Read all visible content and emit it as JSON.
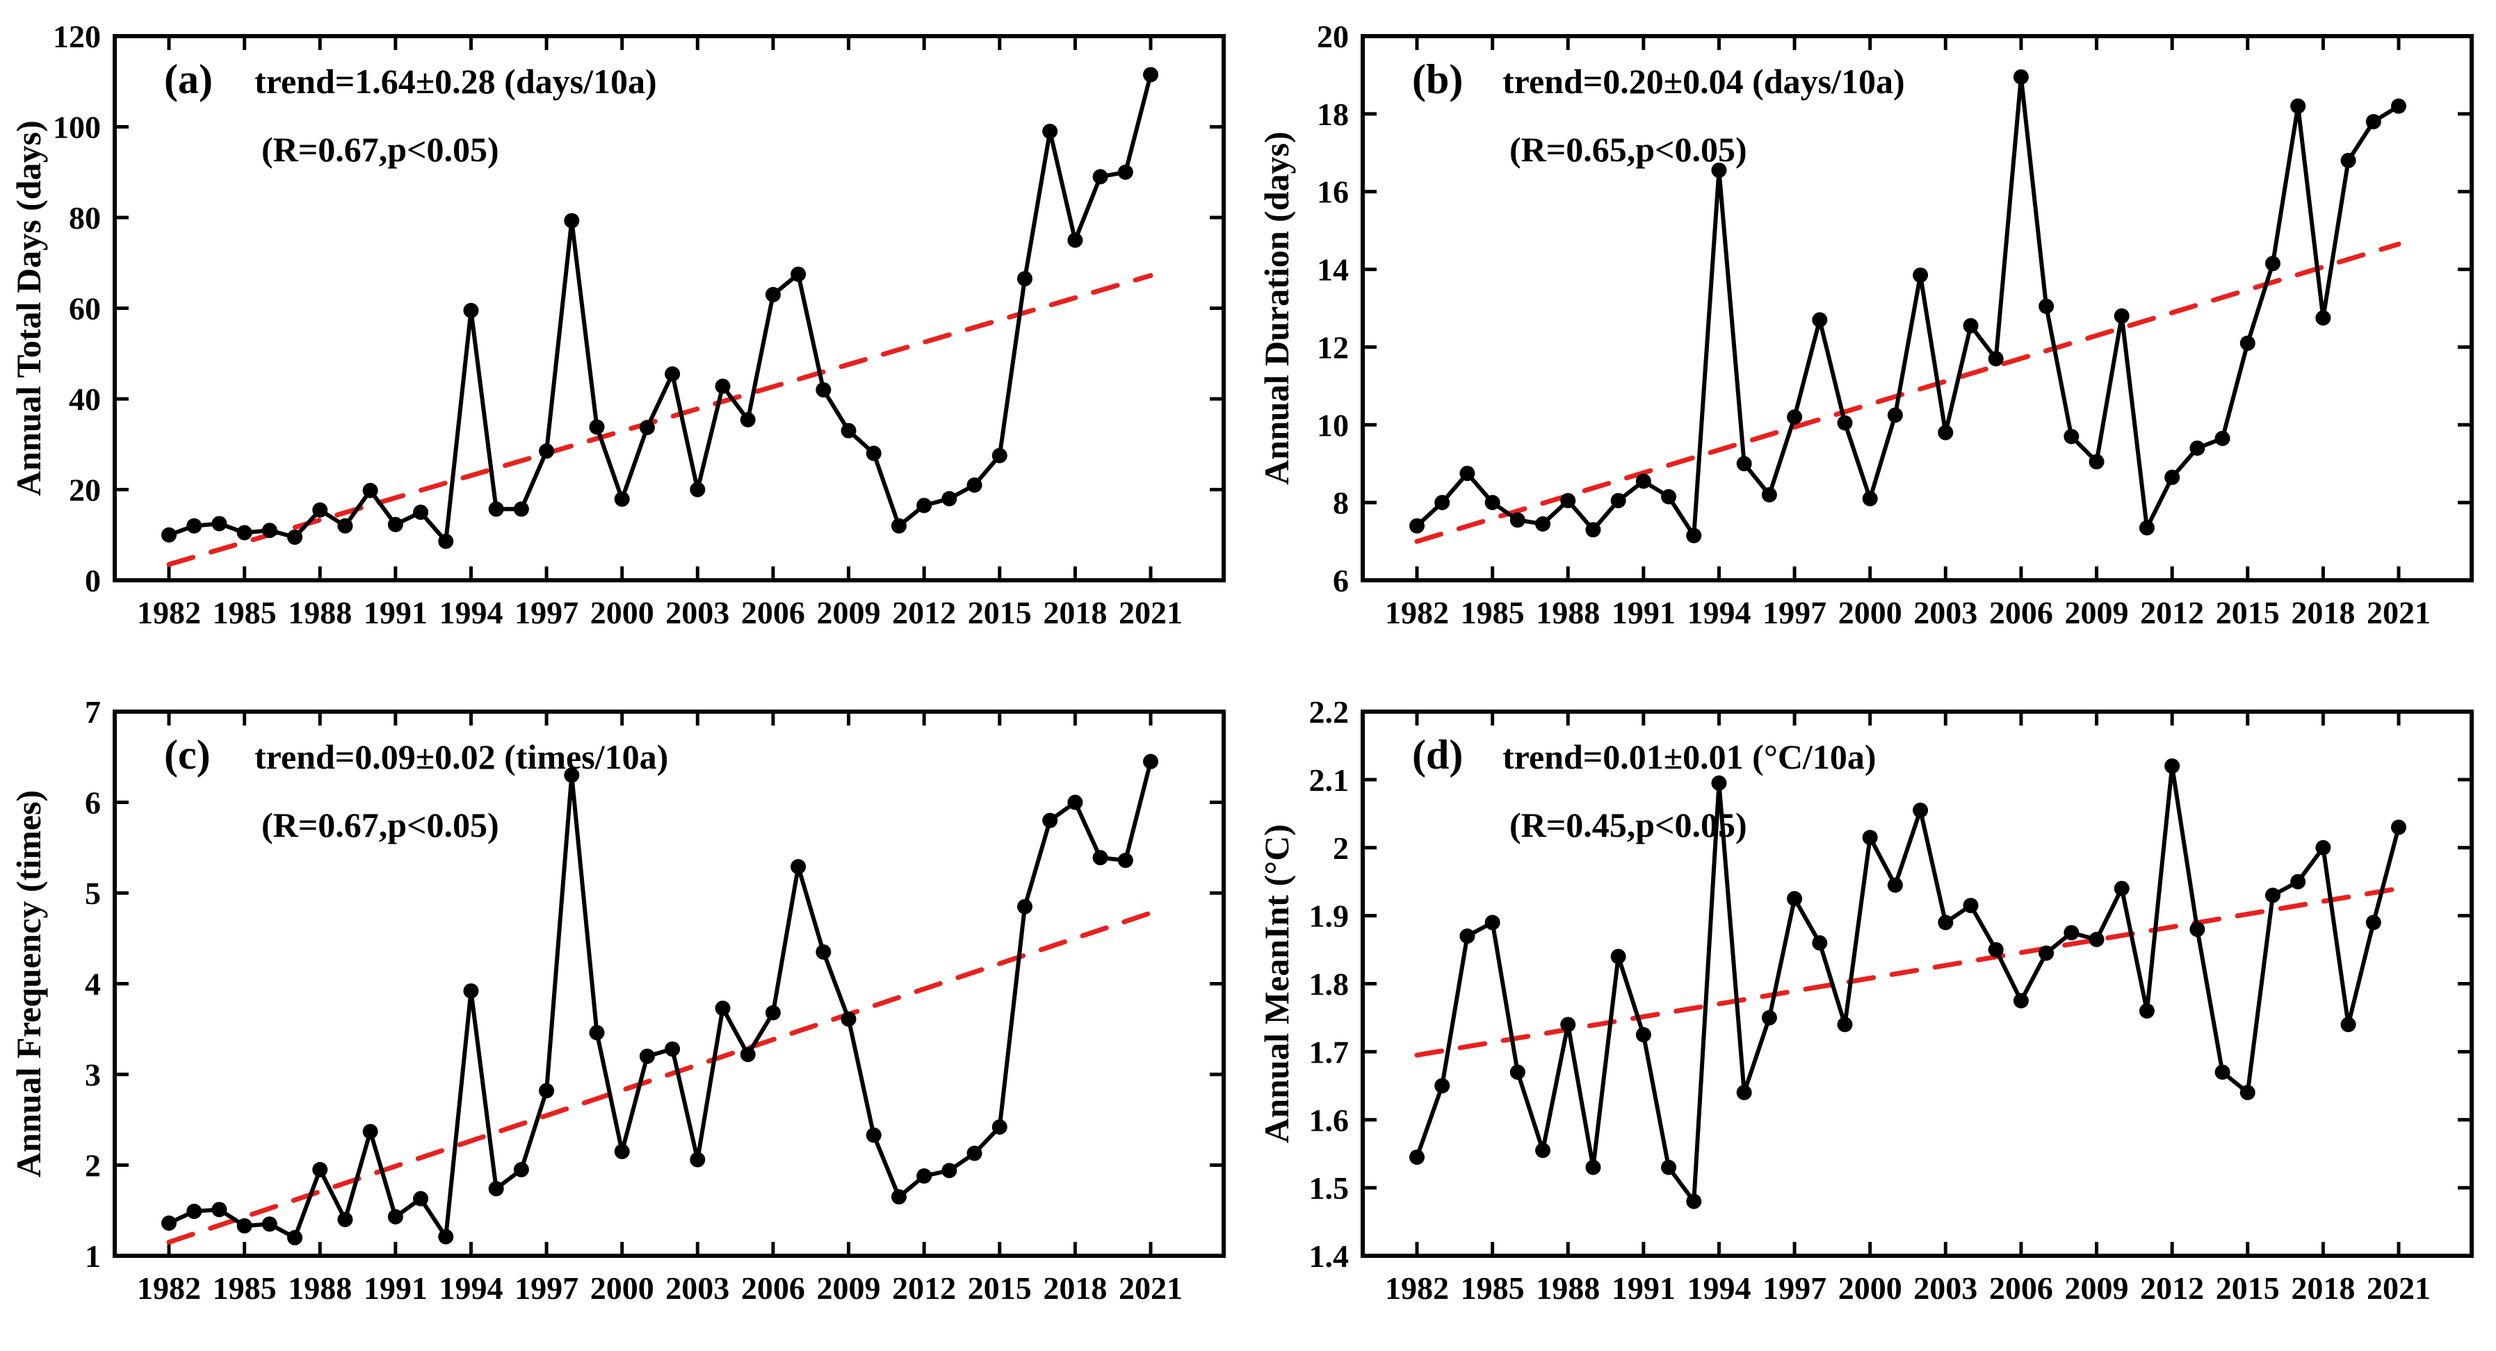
{
  "figure": {
    "background": "#ffffff",
    "axis_color": "#000000"
  },
  "years": [
    1982,
    1983,
    1984,
    1985,
    1986,
    1987,
    1988,
    1989,
    1990,
    1991,
    1992,
    1993,
    1994,
    1995,
    1996,
    1997,
    1998,
    1999,
    2000,
    2001,
    2002,
    2003,
    2004,
    2005,
    2006,
    2007,
    2008,
    2009,
    2010,
    2011,
    2012,
    2013,
    2014,
    2015,
    2016,
    2017,
    2018,
    2019,
    2020,
    2021
  ],
  "chart_data": [
    {
      "id": "a",
      "type": "line",
      "panel_label": "(a)",
      "trend_label": "trend=1.64±0.28 (days/10a)",
      "r_label": "(R=0.67,p<0.05)",
      "ylabel": "Annual Total Days (days)",
      "xlabel": "",
      "ylim": [
        0,
        120
      ],
      "yticks": [
        "0",
        "20",
        "40",
        "60",
        "80",
        "100",
        "120"
      ],
      "xticks": [
        "1982",
        "1985",
        "1988",
        "1991",
        "1994",
        "1997",
        "2000",
        "2003",
        "2006",
        "2009",
        "2012",
        "2015",
        "2018",
        "2021"
      ],
      "values": [
        10,
        12,
        12.5,
        10.5,
        11,
        9.5,
        15.5,
        12,
        19.8,
        12.3,
        15,
        8.6,
        59.5,
        15.7,
        15.7,
        28.5,
        79.3,
        33.8,
        17.9,
        33.7,
        45.5,
        20,
        42.8,
        35.4,
        63,
        67.5,
        42,
        33,
        28,
        12,
        16.5,
        18,
        21,
        27.5,
        66.5,
        99,
        75,
        89,
        90,
        111.5
      ],
      "trend": {
        "x": [
          1982,
          2021
        ],
        "y": [
          3.5,
          67.2
        ]
      },
      "grid": false,
      "legend": "none",
      "line_color": "#000000",
      "trend_color": "#e8211d"
    },
    {
      "id": "b",
      "type": "line",
      "panel_label": "(b)",
      "trend_label": "trend=0.20±0.04 (days/10a)",
      "r_label": "(R=0.65,p<0.05)",
      "ylabel": "Annual Duration (days)",
      "xlabel": "",
      "ylim": [
        6,
        20
      ],
      "yticks": [
        "6",
        "8",
        "10",
        "12",
        "14",
        "16",
        "18",
        "20"
      ],
      "xticks": [
        "1982",
        "1985",
        "1988",
        "1991",
        "1994",
        "1997",
        "2000",
        "2003",
        "2006",
        "2009",
        "2012",
        "2015",
        "2018",
        "2021"
      ],
      "values": [
        7.4,
        8.0,
        8.75,
        8.0,
        7.55,
        7.45,
        8.05,
        7.3,
        8.05,
        8.55,
        8.15,
        7.15,
        16.55,
        9.0,
        8.2,
        10.2,
        12.7,
        10.05,
        8.1,
        10.25,
        13.85,
        9.8,
        12.55,
        11.7,
        18.95,
        13.05,
        9.7,
        9.05,
        12.8,
        7.35,
        8.65,
        9.4,
        9.65,
        12.1,
        14.15,
        18.2,
        12.75,
        16.8,
        17.8,
        18.2
      ],
      "trend": {
        "x": [
          1982,
          2021
        ],
        "y": [
          7.0,
          14.65
        ]
      },
      "grid": false,
      "legend": "none",
      "line_color": "#000000",
      "trend_color": "#e8211d"
    },
    {
      "id": "c",
      "type": "line",
      "panel_label": "(c)",
      "trend_label": "trend=0.09±0.02 (times/10a)",
      "r_label": "(R=0.67,p<0.05)",
      "ylabel": "Annual Frequency (times)",
      "xlabel": "",
      "ylim": [
        1,
        7
      ],
      "yticks": [
        "1",
        "2",
        "3",
        "4",
        "5",
        "6",
        "7"
      ],
      "xticks": [
        "1982",
        "1985",
        "1988",
        "1991",
        "1994",
        "1997",
        "2000",
        "2003",
        "2006",
        "2009",
        "2012",
        "2015",
        "2018",
        "2021"
      ],
      "values": [
        1.36,
        1.49,
        1.51,
        1.33,
        1.35,
        1.2,
        1.95,
        1.4,
        2.37,
        1.43,
        1.63,
        1.21,
        3.92,
        1.74,
        1.95,
        2.82,
        6.3,
        3.46,
        2.15,
        3.2,
        3.28,
        2.06,
        3.73,
        3.22,
        3.68,
        5.29,
        4.35,
        3.61,
        2.33,
        1.65,
        1.88,
        1.94,
        2.13,
        2.42,
        4.85,
        5.8,
        6.0,
        5.39,
        5.36,
        6.45
      ],
      "trend": {
        "x": [
          1982,
          2021
        ],
        "y": [
          1.15,
          4.78
        ]
      },
      "grid": false,
      "legend": "none",
      "line_color": "#000000",
      "trend_color": "#e8211d"
    },
    {
      "id": "d",
      "type": "line",
      "panel_label": "(d)",
      "trend_label": "trend=0.01±0.01 (°C/10a)",
      "r_label": "(R=0.45,p<0.05)",
      "ylabel": "Annual MeanInt (°C)",
      "xlabel": "",
      "ylim": [
        1.4,
        2.2
      ],
      "yticks": [
        "1.4",
        "1.5",
        "1.6",
        "1.7",
        "1.8",
        "1.9",
        "2",
        "2.1",
        "2.2"
      ],
      "xticks": [
        "1982",
        "1985",
        "1988",
        "1991",
        "1994",
        "1997",
        "2000",
        "2003",
        "2006",
        "2009",
        "2012",
        "2015",
        "2018",
        "2021"
      ],
      "values": [
        1.545,
        1.65,
        1.87,
        1.89,
        1.67,
        1.555,
        1.74,
        1.53,
        1.84,
        1.725,
        1.53,
        1.48,
        2.095,
        1.64,
        1.75,
        1.925,
        1.86,
        1.74,
        2.015,
        1.945,
        2.055,
        1.89,
        1.915,
        1.85,
        1.775,
        1.845,
        1.875,
        1.865,
        1.94,
        1.76,
        2.12,
        1.88,
        1.67,
        1.64,
        1.93,
        1.95,
        2.0,
        1.74,
        1.89,
        2.03
      ],
      "trend": {
        "x": [
          1982,
          2021
        ],
        "y": [
          1.695,
          1.94
        ]
      },
      "grid": false,
      "legend": "none",
      "line_color": "#000000",
      "trend_color": "#e8211d"
    }
  ]
}
